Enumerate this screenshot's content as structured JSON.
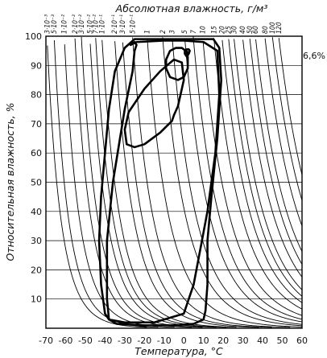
{
  "chart_data": {
    "type": "line",
    "title": "Абсолютная влажность, г/м³",
    "xlabel": "Температура, °С",
    "ylabel": "Относительная влажность, %",
    "xlim": [
      -70,
      60
    ],
    "ylim": [
      0,
      100
    ],
    "x_ticks": [
      "-70",
      "-60",
      "-50",
      "-40",
      "-30",
      "-20",
      "-10",
      "0",
      "10",
      "20",
      "30",
      "40",
      "50",
      "60"
    ],
    "y_ticks": [
      "10",
      "20",
      "30",
      "40",
      "50",
      "60",
      "70",
      "80",
      "90",
      "100"
    ],
    "top_ticks": [
      {
        "label": "3·10⁻³",
        "value": 0.003
      },
      {
        "label": "5·10⁻³",
        "value": 0.005
      },
      {
        "label": "1·10⁻²",
        "value": 0.01
      },
      {
        "label": "2·10⁻²",
        "value": 0.02
      },
      {
        "label": "3·10⁻²",
        "value": 0.03
      },
      {
        "label": "5·10⁻²",
        "value": 0.05
      },
      {
        "label": "7·10⁻²",
        "value": 0.07
      },
      {
        "label": "1·10⁻¹",
        "value": 0.1
      },
      {
        "label": "2·10⁻¹",
        "value": 0.2
      },
      {
        "label": "3·10⁻¹",
        "value": 0.3
      },
      {
        "label": "5·10⁻¹",
        "value": 0.5
      },
      {
        "label": "1",
        "value": 1
      },
      {
        "label": "2",
        "value": 2
      },
      {
        "label": "3",
        "value": 3
      },
      {
        "label": "5",
        "value": 5
      },
      {
        "label": "7",
        "value": 7
      },
      {
        "label": "10",
        "value": 10
      },
      {
        "label": "15",
        "value": 15
      },
      {
        "label": "20",
        "value": 20
      },
      {
        "label": "25",
        "value": 25
      },
      {
        "label": "30",
        "value": 30
      },
      {
        "label": "40",
        "value": 40
      },
      {
        "label": "50",
        "value": 50
      },
      {
        "label": "60",
        "value": 60
      },
      {
        "label": "80",
        "value": 80
      },
      {
        "label": "100",
        "value": 100
      },
      {
        "label": "120",
        "value": 120
      }
    ],
    "annotations": [
      {
        "text": "6,6%",
        "x": 60,
        "y": 93
      }
    ],
    "series": [
      {
        "type": "curve",
        "x": [
          -3,
          -5,
          -6,
          -12,
          -20,
          -25,
          -29,
          -30,
          -28,
          -20,
          -12,
          -5,
          -1,
          0,
          -3
        ]
      },
      {
        "type": "curve",
        "x": [
          1,
          -1,
          -4,
          -7,
          -9,
          -9,
          -7,
          -3,
          0,
          2,
          2,
          1
        ]
      },
      {
        "type": "curve",
        "x": [
          2.5,
          1.5,
          0.5,
          0.5,
          1.5,
          2.5,
          3
        ]
      },
      {
        "type": "point",
        "x": [
          1.5
        ]
      }
    ],
    "contour_series": [
      {
        "x": [
          -40,
          -42,
          -43,
          -42,
          -40,
          -38,
          -35,
          -30,
          -25,
          -20,
          -10,
          0,
          10,
          15,
          18,
          19,
          17,
          14,
          12,
          12,
          11,
          10,
          5,
          -5,
          -20,
          -34,
          -38,
          -40
        ]
      },
      {
        "x": [
          -38,
          -39,
          -39,
          -36,
          -30,
          -26,
          -25,
          -24,
          -25,
          -27,
          -24,
          -10,
          0,
          10,
          17,
          18,
          16,
          12,
          5,
          0,
          -15,
          -30,
          -38
        ]
      },
      {
        "x": [
          -3,
          -5,
          -6,
          -12,
          -20,
          -25,
          -29,
          -30,
          -28,
          -20,
          -12,
          -5,
          -1,
          0,
          -3
        ]
      },
      {
        "x": [
          1,
          -1,
          -4,
          -7,
          -9,
          -9,
          -7,
          -3,
          0,
          2,
          2,
          1
        ]
      },
      {
        "x": [
          2.5,
          1.5,
          0.5,
          0.5,
          1.5,
          2.5,
          3
        ]
      }
    ],
    "contour_y": [
      [
        5,
        15,
        30,
        45,
        60,
        75,
        88,
        96,
        99,
        99,
        99,
        99,
        99,
        99,
        96,
        85,
        65,
        45,
        30,
        15,
        6,
        3,
        1.5,
        1,
        1,
        1.5,
        3,
        5
      ],
      [
        3,
        10,
        30,
        50,
        75,
        88,
        95,
        97,
        98,
        97,
        98,
        98.5,
        98.5,
        98,
        95,
        80,
        60,
        40,
        15,
        5,
        2,
        2,
        3
      ],
      [
        76,
        73,
        71,
        67,
        63,
        62,
        63,
        68,
        74,
        82,
        88,
        92,
        91,
        85,
        76
      ],
      [
        95,
        96,
        96,
        95,
        92,
        89,
        86,
        85,
        86,
        89,
        93,
        95
      ],
      [
        95.5,
        95.5,
        95,
        94,
        93,
        94,
        95
      ]
    ]
  }
}
